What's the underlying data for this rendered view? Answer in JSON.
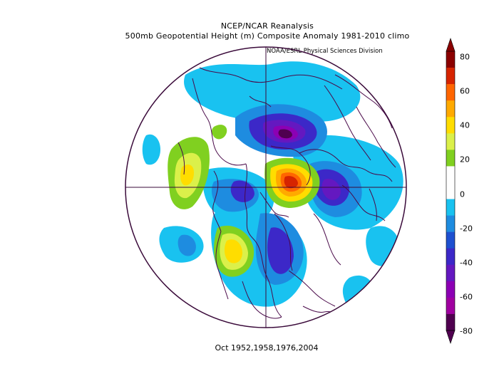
{
  "title": {
    "line1": "NCEP/NCAR Reanalysis",
    "line2": "500mb Geopotential Height (m) Composite Anomaly 1981-2010 climo"
  },
  "credit": "NOAA/ESRL Physical Sciences Division",
  "caption": "Oct 1952,1958,1976,2004",
  "colorbar": {
    "labels": [
      "80",
      "60",
      "40",
      "20",
      "0",
      "-20",
      "-40",
      "-60",
      "-80"
    ],
    "colors": [
      "#8b0000",
      "#d62400",
      "#ff6600",
      "#ffaa00",
      "#ffdd00",
      "#dbf04a",
      "#80d020",
      "#ffffff",
      "#ffffff",
      "#19c2f0",
      "#1e8ce0",
      "#1e50d0",
      "#3c28c8",
      "#6418c0",
      "#8c00b4",
      "#a000a0",
      "#500050"
    ]
  },
  "colors": {
    "outline": "#3a0a3a",
    "coast": "#4a0a4a"
  }
}
